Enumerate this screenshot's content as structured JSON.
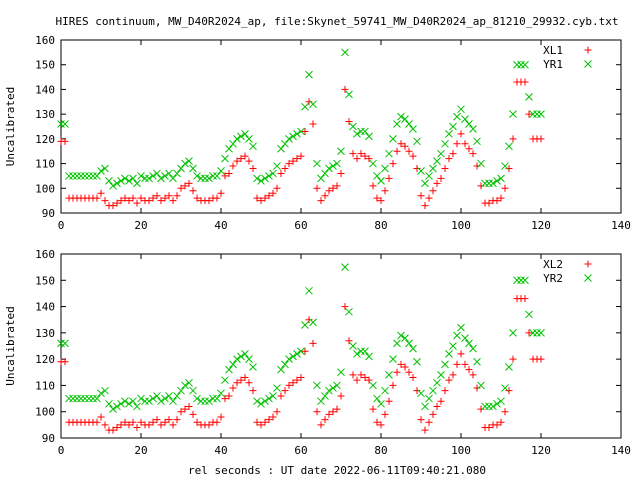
{
  "title": "HIRES continuum, MW_D40R2024_ap, file:Skynet_59741_MW_D40R2024_ap_81210_29932.cyb.txt",
  "xlabel": "rel seconds : UT date 2022-06-11T09:40:21.080",
  "colors": {
    "xl": "#ff0000",
    "yr": "#00c000"
  },
  "chart_data": [
    {
      "type": "scatter",
      "title": "HIRES continuum, MW_D40R2024_ap, file:Skynet_59741_MW_D40R2024_ap_81210_29932.cyb.txt",
      "ylabel": "Uncalibrated",
      "xlabel": "",
      "xlim": [
        0,
        140
      ],
      "ylim": [
        90,
        160
      ],
      "xticks": [
        0,
        20,
        40,
        60,
        80,
        100,
        120,
        140
      ],
      "yticks": [
        90,
        100,
        110,
        120,
        130,
        140,
        150,
        160
      ],
      "legend_position": "top-right",
      "series": [
        {
          "name": "XL1",
          "marker": "+",
          "color": "#ff0000",
          "x": [
            0,
            1,
            2,
            3,
            4,
            5,
            6,
            7,
            8,
            9,
            10,
            11,
            12,
            13,
            14,
            15,
            16,
            17,
            18,
            19,
            20,
            21,
            22,
            23,
            24,
            25,
            26,
            27,
            28,
            29,
            30,
            31,
            32,
            33,
            34,
            35,
            36,
            37,
            38,
            39,
            40,
            41,
            42,
            43,
            44,
            45,
            46,
            47,
            48,
            49,
            50,
            51,
            52,
            53,
            54,
            55,
            56,
            57,
            58,
            59,
            60,
            61,
            62,
            63,
            64,
            65,
            66,
            67,
            68,
            69,
            70,
            71,
            72,
            73,
            74,
            75,
            76,
            77,
            78,
            79,
            80,
            81,
            82,
            83,
            84,
            85,
            86,
            87,
            88,
            89,
            90,
            91,
            92,
            93,
            94,
            95,
            96,
            97,
            98,
            99,
            100,
            101,
            102,
            103,
            104,
            105,
            106,
            107,
            108,
            109,
            110,
            111,
            112,
            113,
            114,
            115,
            116,
            117,
            118,
            119,
            120
          ],
          "y": [
            119,
            119,
            96,
            96,
            96,
            96,
            96,
            96,
            96,
            96,
            98,
            95,
            93,
            93,
            94,
            95,
            96,
            95,
            96,
            94,
            96,
            95,
            95,
            96,
            97,
            95,
            96,
            97,
            95,
            97,
            100,
            101,
            102,
            99,
            96,
            95,
            95,
            95,
            96,
            96,
            98,
            105,
            106,
            109,
            111,
            112,
            113,
            111,
            108,
            96,
            95,
            96,
            97,
            98,
            100,
            106,
            108,
            110,
            111,
            112,
            113,
            123,
            135,
            126,
            100,
            95,
            97,
            99,
            100,
            101,
            106,
            140,
            127,
            114,
            112,
            114,
            113,
            112,
            101,
            96,
            95,
            99,
            104,
            110,
            115,
            118,
            117,
            115,
            113,
            108,
            97,
            93,
            96,
            99,
            102,
            104,
            108,
            112,
            114,
            118,
            122,
            118,
            116,
            114,
            109,
            101,
            94,
            94,
            95,
            95,
            96,
            100,
            108,
            120,
            143,
            143,
            143,
            130,
            120,
            120,
            120
          ]
        },
        {
          "name": "YR1",
          "marker": "x",
          "color": "#00c000",
          "x": [
            0,
            1,
            2,
            3,
            4,
            5,
            6,
            7,
            8,
            9,
            10,
            11,
            12,
            13,
            14,
            15,
            16,
            17,
            18,
            19,
            20,
            21,
            22,
            23,
            24,
            25,
            26,
            27,
            28,
            29,
            30,
            31,
            32,
            33,
            34,
            35,
            36,
            37,
            38,
            39,
            40,
            41,
            42,
            43,
            44,
            45,
            46,
            47,
            48,
            49,
            50,
            51,
            52,
            53,
            54,
            55,
            56,
            57,
            58,
            59,
            60,
            61,
            62,
            63,
            64,
            65,
            66,
            67,
            68,
            69,
            70,
            71,
            72,
            73,
            74,
            75,
            76,
            77,
            78,
            79,
            80,
            81,
            82,
            83,
            84,
            85,
            86,
            87,
            88,
            89,
            90,
            91,
            92,
            93,
            94,
            95,
            96,
            97,
            98,
            99,
            100,
            101,
            102,
            103,
            104,
            105,
            106,
            107,
            108,
            109,
            110,
            111,
            112,
            113,
            114,
            115,
            116,
            117,
            118,
            119,
            120
          ],
          "y": [
            126,
            126,
            105,
            105,
            105,
            105,
            105,
            105,
            105,
            105,
            107,
            108,
            103,
            101,
            102,
            103,
            104,
            103,
            104,
            102,
            105,
            104,
            104,
            105,
            106,
            104,
            105,
            106,
            104,
            106,
            108,
            110,
            111,
            108,
            105,
            104,
            104,
            104,
            105,
            105,
            107,
            112,
            116,
            118,
            120,
            121,
            122,
            120,
            117,
            104,
            103,
            104,
            105,
            106,
            109,
            116,
            118,
            120,
            121,
            122,
            123,
            133,
            146,
            134,
            110,
            104,
            106,
            108,
            109,
            110,
            115,
            155,
            138,
            125,
            122,
            123,
            123,
            121,
            110,
            105,
            103,
            108,
            114,
            120,
            126,
            129,
            128,
            126,
            124,
            119,
            107,
            102,
            105,
            108,
            111,
            114,
            118,
            122,
            125,
            129,
            132,
            128,
            126,
            124,
            119,
            110,
            102,
            102,
            102,
            103,
            104,
            109,
            117,
            130,
            150,
            150,
            150,
            137,
            130,
            130,
            130
          ]
        }
      ]
    },
    {
      "type": "scatter",
      "title": "",
      "ylabel": "Uncalibrated",
      "xlabel": "rel seconds : UT date 2022-06-11T09:40:21.080",
      "xlim": [
        0,
        140
      ],
      "ylim": [
        90,
        160
      ],
      "xticks": [
        0,
        20,
        40,
        60,
        80,
        100,
        120,
        140
      ],
      "yticks": [
        90,
        100,
        110,
        120,
        130,
        140,
        150,
        160
      ],
      "legend_position": "top-right",
      "series": [
        {
          "name": "XL2",
          "marker": "+",
          "color": "#ff0000",
          "x": [
            0,
            1,
            2,
            3,
            4,
            5,
            6,
            7,
            8,
            9,
            10,
            11,
            12,
            13,
            14,
            15,
            16,
            17,
            18,
            19,
            20,
            21,
            22,
            23,
            24,
            25,
            26,
            27,
            28,
            29,
            30,
            31,
            32,
            33,
            34,
            35,
            36,
            37,
            38,
            39,
            40,
            41,
            42,
            43,
            44,
            45,
            46,
            47,
            48,
            49,
            50,
            51,
            52,
            53,
            54,
            55,
            56,
            57,
            58,
            59,
            60,
            61,
            62,
            63,
            64,
            65,
            66,
            67,
            68,
            69,
            70,
            71,
            72,
            73,
            74,
            75,
            76,
            77,
            78,
            79,
            80,
            81,
            82,
            83,
            84,
            85,
            86,
            87,
            88,
            89,
            90,
            91,
            92,
            93,
            94,
            95,
            96,
            97,
            98,
            99,
            100,
            101,
            102,
            103,
            104,
            105,
            106,
            107,
            108,
            109,
            110,
            111,
            112,
            113,
            114,
            115,
            116,
            117,
            118,
            119,
            120
          ],
          "y": [
            119,
            119,
            96,
            96,
            96,
            96,
            96,
            96,
            96,
            96,
            98,
            95,
            93,
            93,
            94,
            95,
            96,
            95,
            96,
            94,
            96,
            95,
            95,
            96,
            97,
            95,
            96,
            97,
            95,
            97,
            100,
            101,
            102,
            99,
            96,
            95,
            95,
            95,
            96,
            96,
            98,
            105,
            106,
            109,
            111,
            112,
            113,
            111,
            108,
            96,
            95,
            96,
            97,
            98,
            100,
            106,
            108,
            110,
            111,
            112,
            113,
            123,
            135,
            126,
            100,
            95,
            97,
            99,
            100,
            101,
            106,
            140,
            127,
            114,
            112,
            114,
            113,
            112,
            101,
            96,
            95,
            99,
            104,
            110,
            115,
            118,
            117,
            115,
            113,
            108,
            97,
            93,
            96,
            99,
            102,
            104,
            108,
            112,
            114,
            118,
            122,
            118,
            116,
            114,
            109,
            101,
            94,
            94,
            95,
            95,
            96,
            100,
            108,
            120,
            143,
            143,
            143,
            130,
            120,
            120,
            120
          ]
        },
        {
          "name": "YR2",
          "marker": "x",
          "color": "#00c000",
          "x": [
            0,
            1,
            2,
            3,
            4,
            5,
            6,
            7,
            8,
            9,
            10,
            11,
            12,
            13,
            14,
            15,
            16,
            17,
            18,
            19,
            20,
            21,
            22,
            23,
            24,
            25,
            26,
            27,
            28,
            29,
            30,
            31,
            32,
            33,
            34,
            35,
            36,
            37,
            38,
            39,
            40,
            41,
            42,
            43,
            44,
            45,
            46,
            47,
            48,
            49,
            50,
            51,
            52,
            53,
            54,
            55,
            56,
            57,
            58,
            59,
            60,
            61,
            62,
            63,
            64,
            65,
            66,
            67,
            68,
            69,
            70,
            71,
            72,
            73,
            74,
            75,
            76,
            77,
            78,
            79,
            80,
            81,
            82,
            83,
            84,
            85,
            86,
            87,
            88,
            89,
            90,
            91,
            92,
            93,
            94,
            95,
            96,
            97,
            98,
            99,
            100,
            101,
            102,
            103,
            104,
            105,
            106,
            107,
            108,
            109,
            110,
            111,
            112,
            113,
            114,
            115,
            116,
            117,
            118,
            119,
            120
          ],
          "y": [
            126,
            126,
            105,
            105,
            105,
            105,
            105,
            105,
            105,
            105,
            107,
            108,
            103,
            101,
            102,
            103,
            104,
            103,
            104,
            102,
            105,
            104,
            104,
            105,
            106,
            104,
            105,
            106,
            104,
            106,
            108,
            110,
            111,
            108,
            105,
            104,
            104,
            104,
            105,
            105,
            107,
            112,
            116,
            118,
            120,
            121,
            122,
            120,
            117,
            104,
            103,
            104,
            105,
            106,
            109,
            116,
            118,
            120,
            121,
            122,
            123,
            133,
            146,
            134,
            110,
            104,
            106,
            108,
            109,
            110,
            115,
            155,
            138,
            125,
            122,
            123,
            123,
            121,
            110,
            105,
            103,
            108,
            114,
            120,
            126,
            129,
            128,
            126,
            124,
            119,
            107,
            102,
            105,
            108,
            111,
            114,
            118,
            122,
            125,
            129,
            132,
            128,
            126,
            124,
            119,
            110,
            102,
            102,
            102,
            103,
            104,
            109,
            117,
            130,
            150,
            150,
            150,
            137,
            130,
            130,
            130
          ]
        }
      ]
    }
  ]
}
